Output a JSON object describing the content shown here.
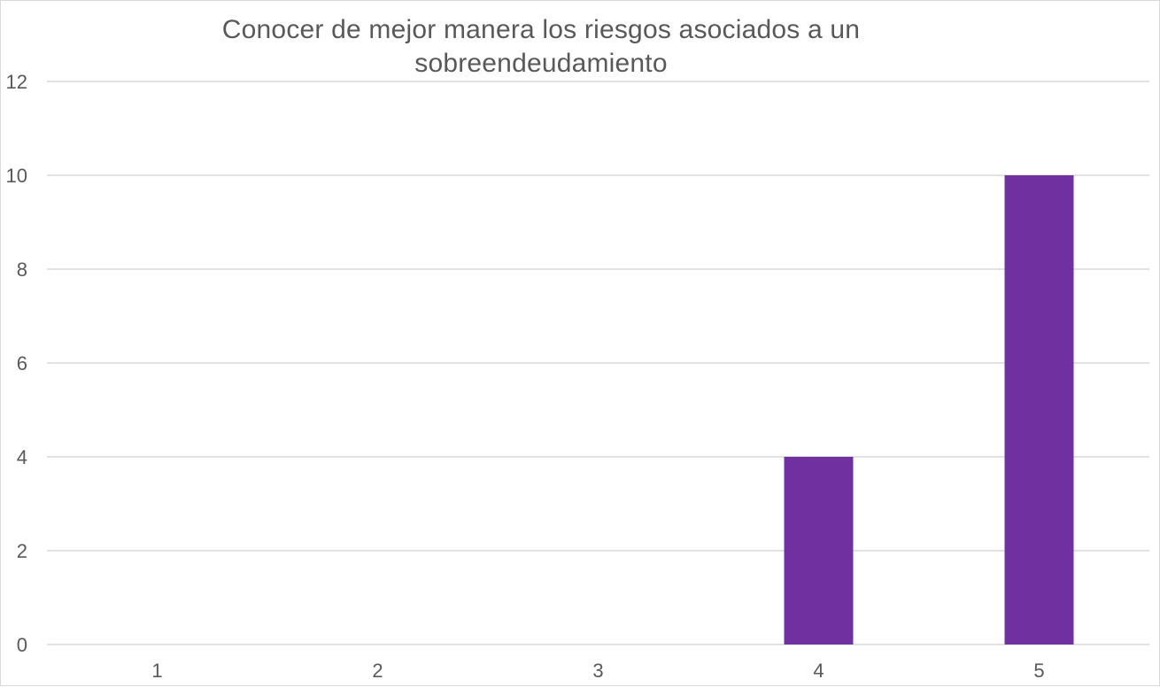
{
  "chart_data": {
    "type": "bar",
    "title": "Conocer de mejor manera los riesgos asociados a un sobreendeudamiento",
    "categories": [
      "1",
      "2",
      "3",
      "4",
      "5"
    ],
    "values": [
      0,
      0,
      0,
      4,
      10
    ],
    "xlabel": "",
    "ylabel": "",
    "ylim": [
      0,
      12
    ],
    "yticks": [
      "0",
      "2",
      "4",
      "6",
      "8",
      "10",
      "12"
    ],
    "grid": true,
    "legend": "none",
    "bar_color": "#7030a0",
    "gridline_color": "#d9d9d9",
    "text_color": "#595959"
  }
}
